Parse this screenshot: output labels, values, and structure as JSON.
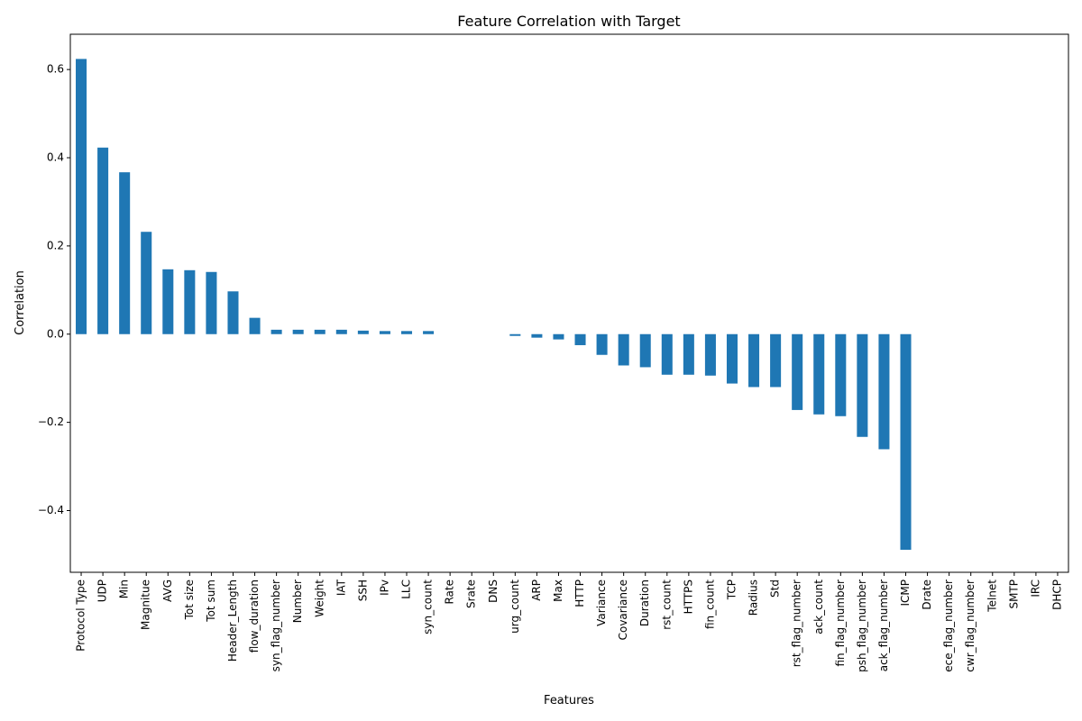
{
  "chart_data": {
    "type": "bar",
    "title": "Feature Correlation with Target",
    "xlabel": "Features",
    "ylabel": "Correlation",
    "ylim": [
      -0.54,
      0.68
    ],
    "yticks": [
      0.6,
      0.4,
      0.2,
      0.0,
      -0.2,
      -0.4
    ],
    "ytick_labels": [
      "0.6",
      "0.4",
      "0.2",
      "0.0",
      "−0.2",
      "−0.4"
    ],
    "grid": false,
    "color": "#1f77b4",
    "categories": [
      "Protocol Type",
      "UDP",
      "Min",
      "Magnitue",
      "AVG",
      "Tot size",
      "Tot sum",
      "Header_Length",
      "flow_duration",
      "syn_flag_number",
      "Number",
      "Weight",
      "IAT",
      "SSH",
      "IPv",
      "LLC",
      "syn_count",
      "Rate",
      "Srate",
      "DNS",
      "urg_count",
      "ARP",
      "Max",
      "HTTP",
      "Variance",
      "Covariance",
      "Duration",
      "rst_count",
      "HTTPS",
      "fin_count",
      "TCP",
      "Radius",
      "Std",
      "rst_flag_number",
      "ack_count",
      "fin_flag_number",
      "psh_flag_number",
      "ack_flag_number",
      "ICMP",
      "Drate",
      "ece_flag_number",
      "cwr_flag_number",
      "Telnet",
      "SMTP",
      "IRC",
      "DHCP"
    ],
    "values": [
      0.624,
      0.423,
      0.367,
      0.232,
      0.147,
      0.145,
      0.141,
      0.097,
      0.037,
      0.01,
      0.01,
      0.01,
      0.01,
      0.008,
      0.007,
      0.007,
      0.007,
      0.0,
      0.0,
      0.0,
      -0.004,
      -0.008,
      -0.012,
      -0.025,
      -0.047,
      -0.071,
      -0.075,
      -0.092,
      -0.092,
      -0.094,
      -0.112,
      -0.12,
      -0.12,
      -0.172,
      -0.182,
      -0.186,
      -0.233,
      -0.261,
      -0.489,
      0.0,
      0.0,
      0.0,
      0.0,
      0.0,
      0.0,
      0.0
    ]
  }
}
